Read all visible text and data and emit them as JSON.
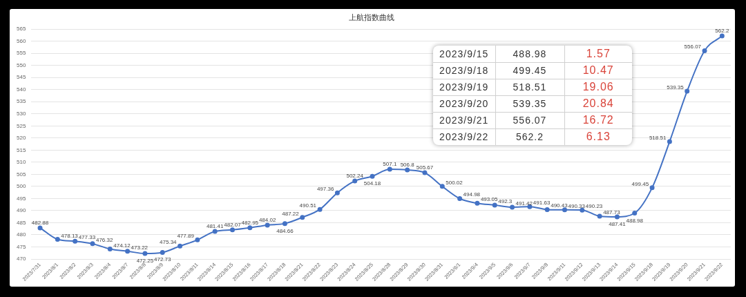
{
  "chart_data": {
    "type": "line",
    "title": "上航指数曲线",
    "categories": [
      "2023/7/31",
      "2023/8/1",
      "2023/8/2",
      "2023/8/3",
      "2023/8/4",
      "2023/8/7",
      "2023/8/8",
      "2023/8/9",
      "2023/8/10",
      "2023/8/11",
      "2023/8/14",
      "2023/8/15",
      "2023/8/16",
      "2023/8/17",
      "2023/8/18",
      "2023/8/21",
      "2023/8/22",
      "2023/8/23",
      "2023/8/24",
      "2023/8/25",
      "2023/8/28",
      "2023/8/29",
      "2023/8/30",
      "2023/8/31",
      "2023/9/1",
      "2023/9/4",
      "2023/9/5",
      "2023/9/6",
      "2023/9/7",
      "2023/9/8",
      "2023/9/11",
      "2023/9/12",
      "2023/9/13",
      "2023/9/14",
      "2023/9/15",
      "2023/9/18",
      "2023/9/19",
      "2023/9/20",
      "2023/9/21",
      "2023/9/22"
    ],
    "values": [
      482.88,
      478.13,
      477.33,
      476.32,
      474.12,
      473.22,
      472.25,
      472.73,
      475.34,
      477.89,
      481.41,
      482.07,
      482.95,
      484.02,
      484.66,
      487.22,
      490.51,
      497.36,
      502.24,
      504.18,
      507.1,
      506.8,
      505.67,
      500.02,
      494.98,
      493.05,
      492.3,
      491.42,
      491.63,
      490.43,
      490.33,
      490.23,
      487.73,
      487.41,
      488.98,
      499.45,
      518.51,
      539.35,
      556.07,
      562.2
    ],
    "color": "#4472c4",
    "marker": "circle",
    "line_style": "solid",
    "data_labels": true,
    "ylim": [
      470,
      565
    ],
    "yticks": [
      470,
      475,
      480,
      485,
      490,
      495,
      500,
      505,
      510,
      515,
      520,
      525,
      530,
      535,
      540,
      545,
      550,
      555,
      560,
      565
    ],
    "grid": "y",
    "legend": false,
    "annotations": [
      "2023/9/15",
      "488.98",
      "1.57",
      "2023/9/18",
      "499.45",
      "10.47",
      "2023/9/19",
      "518.51",
      "19.06",
      "2023/9/20",
      "539.35",
      "20.84",
      "2023/9/21",
      "556.07",
      "16.72",
      "2023/9/22",
      "562.2",
      "6.13"
    ]
  }
}
